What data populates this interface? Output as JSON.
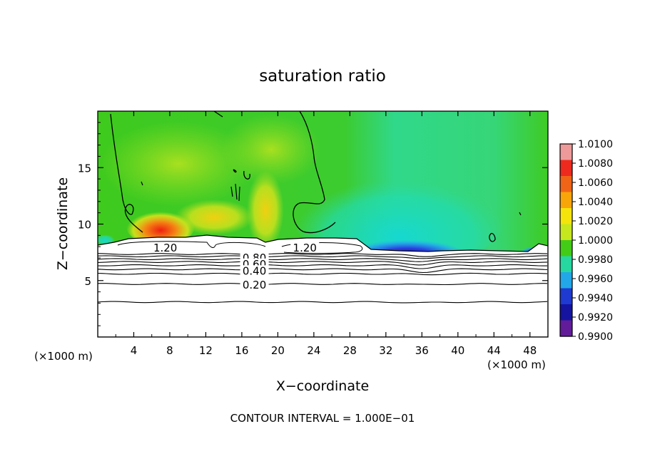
{
  "chart_data": {
    "type": "heatmap",
    "title": "saturation ratio",
    "xlabel": "X−coordinate",
    "ylabel": "Z−coordinate",
    "x_unit_label_left": "(×1000 m)",
    "x_unit_label_right": "(×1000 m)",
    "xlim": [
      0,
      50
    ],
    "ylim": [
      0,
      20
    ],
    "x_ticks": [
      4,
      8,
      12,
      16,
      20,
      24,
      28,
      32,
      36,
      40,
      44,
      48
    ],
    "y_ticks": [
      5,
      10,
      15
    ],
    "footer": "CONTOUR INTERVAL = 1.000E−01",
    "colorbar": {
      "min": 0.99,
      "max": 1.01,
      "labels": [
        "1.0100",
        "1.0080",
        "1.0060",
        "1.0040",
        "1.0020",
        "1.0000",
        "0.9980",
        "0.9960",
        "0.9940",
        "0.9920",
        "0.9900"
      ],
      "colors": [
        "#ef9a9a",
        "#ee2a1e",
        "#f06418",
        "#f8a50a",
        "#f4e40c",
        "#c6e61e",
        "#42cc18",
        "#26d8a0",
        "#22a8e8",
        "#1e3ad0",
        "#1414a0",
        "#621c9a"
      ]
    },
    "contour_labels": [
      {
        "text": "1.20",
        "x": 7.5,
        "z": 7.9
      },
      {
        "text": "1.20",
        "x": 23.0,
        "z": 7.9
      },
      {
        "text": "0.80",
        "x": 17.4,
        "z": 7.0
      },
      {
        "text": "0.60",
        "x": 17.4,
        "z": 6.45
      },
      {
        "text": "0.40",
        "x": 17.4,
        "z": 5.85
      },
      {
        "text": "0.20",
        "x": 17.4,
        "z": 4.6
      }
    ]
  }
}
